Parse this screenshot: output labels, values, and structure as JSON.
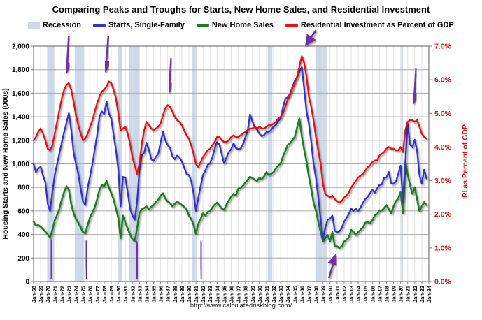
{
  "title": "Comparing Peaks and Troughs for Starts, New Home Sales, and Residential Investment",
  "url": "http://www.calculatedriskblog.com/",
  "legend": [
    {
      "label": "Recession",
      "swatch": "box",
      "color": "#ccd9ec"
    },
    {
      "label": "Starts, Single-Family",
      "swatch": "line",
      "color": "#3333cc"
    },
    {
      "label": "New Home Sales",
      "swatch": "line",
      "color": "#1a7e1a"
    },
    {
      "label": "Residential Investment as Percent of GDP",
      "swatch": "line",
      "color": "#ee0f0f"
    }
  ],
  "chart_data": {
    "type": "line",
    "x_start": 1968,
    "x_end": 2024,
    "grid": true,
    "left_axis": {
      "label": "Housing Starts and New Home Sales (000s)",
      "min": 0,
      "max": 2000,
      "ticks": [
        "2,000",
        "1,800",
        "1,600",
        "1,400",
        "1,200",
        "1,000",
        "800",
        "600",
        "400",
        "200",
        "0"
      ],
      "color": "#000000"
    },
    "right_axis": {
      "label": "RI as Percent of GDP",
      "min": 0,
      "max": 7,
      "ticks": [
        "7.0%",
        "6.0%",
        "5.0%",
        "4.0%",
        "3.0%",
        "2.0%",
        "1.0%",
        "0.0%"
      ],
      "color": "#e8110f"
    },
    "x_ticks": [
      "Jan-68",
      "Jan-69",
      "Jan-70",
      "Jan-71",
      "Jan-72",
      "Jan-73",
      "Jan-74",
      "Jan-75",
      "Jan-76",
      "Jan-77",
      "Jan-78",
      "Jan-79",
      "Jan-80",
      "Jan-81",
      "Jan-82",
      "Jan-83",
      "Jan-84",
      "Jan-85",
      "Jan-86",
      "Jan-87",
      "Jan-88",
      "Jan-89",
      "Jan-90",
      "Jan-91",
      "Jan-92",
      "Jan-93",
      "Jan-94",
      "Jan-95",
      "Jan-96",
      "Jan-97",
      "Jan-98",
      "Jan-99",
      "Jan-00",
      "Jan-01",
      "Jan-02",
      "Jan-03",
      "Jan-04",
      "Jan-05",
      "Jan-06",
      "Jan-07",
      "Jan-08",
      "Jan-09",
      "Jan-10",
      "Jan-11",
      "Jan-12",
      "Jan-13",
      "Jan-14",
      "Jan-15",
      "Jan-16",
      "Jan-17",
      "Jan-18",
      "Jan-19",
      "Jan-20",
      "Jan-21",
      "Jan-22",
      "Jan-23",
      "Jan-24"
    ],
    "recession_color": "#ccd9ec",
    "recessions": [
      [
        1969.92,
        1970.92
      ],
      [
        1973.83,
        1975.17
      ],
      [
        1980.0,
        1980.5
      ],
      [
        1981.5,
        1982.92
      ],
      [
        1990.5,
        1991.17
      ],
      [
        2001.17,
        2001.83
      ],
      [
        2007.92,
        2009.5
      ],
      [
        2020.08,
        2020.33
      ]
    ],
    "series": [
      {
        "name": "New Home Sales",
        "axis": "left",
        "color": "#1a7e1a",
        "width": 2.5,
        "start": 1968,
        "per_year": 3,
        "values": [
          510,
          475,
          480,
          465,
          445,
          425,
          400,
          375,
          440,
          520,
          565,
          620,
          700,
          760,
          810,
          780,
          660,
          580,
          530,
          500,
          460,
          420,
          410,
          480,
          545,
          585,
          630,
          700,
          780,
          820,
          810,
          855,
          800,
          750,
          700,
          620,
          540,
          370,
          560,
          500,
          450,
          400,
          360,
          345,
          455,
          580,
          615,
          625,
          640,
          615,
          635,
          650,
          675,
          695,
          730,
          750,
          705,
          680,
          665,
          640,
          660,
          680,
          665,
          650,
          635,
          615,
          560,
          530,
          480,
          405,
          490,
          530,
          580,
          560,
          590,
          600,
          630,
          655,
          670,
          645,
          620,
          610,
          655,
          690,
          720,
          745,
          730,
          790,
          795,
          815,
          840,
          865,
          890,
          880,
          865,
          855,
          880,
          870,
          895,
          930,
          905,
          915,
          930,
          960,
          985,
          1000,
          1065,
          1110,
          1160,
          1175,
          1200,
          1230,
          1310,
          1385,
          1230,
          1120,
          1020,
          890,
          790,
          670,
          600,
          510,
          420,
          340,
          370,
          395,
          345,
          420,
          300,
          300,
          285,
          300,
          340,
          355,
          375,
          440,
          420,
          395,
          420,
          440,
          460,
          500,
          505,
          495,
          520,
          560,
          575,
          600,
          605,
          625,
          650,
          615,
          580,
          640,
          685,
          705,
          760,
          580,
          1010,
          910,
          820,
          745,
          800,
          700,
          600,
          640,
          675,
          650
        ]
      },
      {
        "name": "Starts, Single-Family",
        "axis": "left",
        "color": "#3333cc",
        "width": 2.3,
        "start": 1968,
        "per_year": 3,
        "values": [
          1000,
          930,
          960,
          975,
          900,
          845,
          660,
          600,
          760,
          905,
          1000,
          1090,
          1185,
          1270,
          1350,
          1430,
          1290,
          1100,
          1000,
          915,
          790,
          680,
          650,
          795,
          895,
          1000,
          1120,
          1245,
          1400,
          1445,
          1425,
          1530,
          1430,
          1385,
          1250,
          1120,
          950,
          640,
          890,
          880,
          760,
          620,
          560,
          525,
          680,
          945,
          1075,
          1095,
          1180,
          1120,
          1040,
          1025,
          1060,
          1085,
          1185,
          1270,
          1200,
          1160,
          1135,
          1065,
          1040,
          1070,
          1055,
          1020,
          970,
          915,
          905,
          855,
          750,
          600,
          710,
          810,
          905,
          940,
          990,
          1005,
          1055,
          1130,
          1185,
          1165,
          1080,
          1005,
          1055,
          1100,
          1125,
          1175,
          1135,
          1125,
          1130,
          1165,
          1225,
          1280,
          1420,
          1360,
          1310,
          1290,
          1255,
          1235,
          1245,
          1270,
          1272,
          1288,
          1315,
          1330,
          1365,
          1385,
          1480,
          1555,
          1565,
          1595,
          1650,
          1705,
          1735,
          1785,
          1820,
          1640,
          1445,
          1340,
          1190,
          1000,
          880,
          720,
          530,
          365,
          460,
          525,
          535,
          560,
          430,
          420,
          425,
          455,
          510,
          540,
          575,
          620,
          600,
          620,
          600,
          630,
          670,
          700,
          720,
          750,
          780,
          755,
          790,
          820,
          825,
          880,
          885,
          930,
          835,
          830,
          850,
          915,
          985,
          680,
          1020,
          1340,
          1165,
          1140,
          1205,
          1110,
          905,
          830,
          950,
          875
        ]
      },
      {
        "name": "Residential Investment as Percent of GDP",
        "axis": "right",
        "color": "#ee0f0f",
        "width": 2.3,
        "start": 1968,
        "per_year": 3,
        "values": [
          4.2,
          4.3,
          4.45,
          4.55,
          4.4,
          4.2,
          3.95,
          3.9,
          4.05,
          4.4,
          4.75,
          5.1,
          5.45,
          5.7,
          5.85,
          5.9,
          5.7,
          5.35,
          4.95,
          4.65,
          4.4,
          4.2,
          4.25,
          4.4,
          4.6,
          4.8,
          5.05,
          5.3,
          5.5,
          5.65,
          5.7,
          5.8,
          5.95,
          5.9,
          5.7,
          5.45,
          5.0,
          4.5,
          4.55,
          4.6,
          4.4,
          4.1,
          3.7,
          3.45,
          3.2,
          3.5,
          4.1,
          4.5,
          4.75,
          4.65,
          4.55,
          4.5,
          4.55,
          4.6,
          4.7,
          4.95,
          5.15,
          5.25,
          5.2,
          5.05,
          4.9,
          4.8,
          4.75,
          4.65,
          4.5,
          4.35,
          4.25,
          4.05,
          3.8,
          3.5,
          3.4,
          3.55,
          3.7,
          3.8,
          3.9,
          3.95,
          4.05,
          4.15,
          4.3,
          4.3,
          4.2,
          4.15,
          4.15,
          4.2,
          4.3,
          4.35,
          4.3,
          4.3,
          4.35,
          4.4,
          4.45,
          4.5,
          4.55,
          4.55,
          4.6,
          4.55,
          4.6,
          4.55,
          4.55,
          4.6,
          4.65,
          4.65,
          4.7,
          4.75,
          4.85,
          4.9,
          5.0,
          5.2,
          5.4,
          5.55,
          5.75,
          5.9,
          6.1,
          6.4,
          6.7,
          6.5,
          6.1,
          5.5,
          5.2,
          4.8,
          4.3,
          3.9,
          3.5,
          2.9,
          2.6,
          2.55,
          2.5,
          2.55,
          2.45,
          2.4,
          2.35,
          2.4,
          2.5,
          2.55,
          2.65,
          2.8,
          2.9,
          3.0,
          3.1,
          3.15,
          3.2,
          3.3,
          3.4,
          3.45,
          3.55,
          3.6,
          3.6,
          3.75,
          3.8,
          3.85,
          3.95,
          4.0,
          3.95,
          3.95,
          3.9,
          3.9,
          4.0,
          3.85,
          4.5,
          4.75,
          4.8,
          4.8,
          4.75,
          4.8,
          4.6,
          4.4,
          4.3,
          4.25
        ]
      }
    ],
    "annotations": {
      "color": "#7030a0",
      "arrows": [
        {
          "kind": "peak",
          "x1": 1973.0,
          "y1": 2085,
          "x2": 1972.7,
          "y2": 1790
        },
        {
          "kind": "peak",
          "x1": 1978.6,
          "y1": 2085,
          "x2": 1978.2,
          "y2": 1800
        },
        {
          "kind": "peak",
          "x1": 1987.5,
          "y1": 1900,
          "x2": 1987.2,
          "y2": 1620
        },
        {
          "kind": "peak",
          "x1": 2008.0,
          "y1": 2135,
          "x2": 2006.7,
          "y2": 2020
        },
        {
          "kind": "peak",
          "x1": 2022.2,
          "y1": 1810,
          "x2": 2021.9,
          "y2": 1530
        },
        {
          "kind": "trough",
          "x1": 1970.55,
          "y1": 20,
          "x2": 1970.45,
          "y2": 345
        },
        {
          "kind": "trough",
          "x1": 1975.55,
          "y1": 20,
          "x2": 1975.45,
          "y2": 330
        },
        {
          "kind": "trough",
          "x1": 1982.7,
          "y1": 20,
          "x2": 1982.6,
          "y2": 325
        },
        {
          "kind": "trough",
          "x1": 1991.8,
          "y1": 20,
          "x2": 1991.7,
          "y2": 325
        },
        {
          "kind": "trough",
          "x1": 2009.85,
          "y1": 30,
          "x2": 2010.75,
          "y2": 215
        }
      ]
    }
  }
}
